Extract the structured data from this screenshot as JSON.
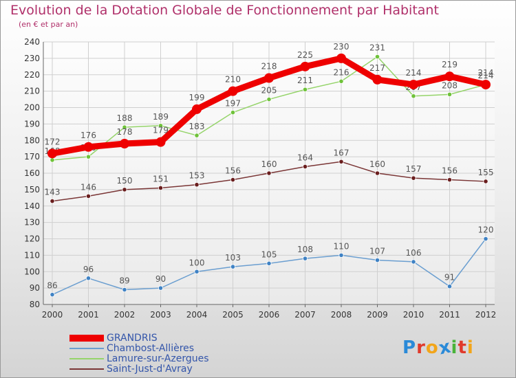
{
  "header": {
    "title": "Evolution de la Dotation Globale de Fonctionnement par Habitant",
    "subtitle": "(en € et par an)"
  },
  "logo": {
    "text": "Proxiti",
    "letters": [
      "P",
      "r",
      "o",
      "x",
      "i",
      "t",
      "i"
    ],
    "letter_colors": [
      "#2a8ad8",
      "#e0392b",
      "#f2a51a",
      "#2a8ad8",
      "#49b33a",
      "#e0392b",
      "#f2a51a"
    ]
  },
  "chart_data": {
    "type": "line",
    "title": "Evolution de la Dotation Globale de Fonctionnement par Habitant",
    "subtitle": "(en € et par an)",
    "x": [
      2000,
      2001,
      2002,
      2003,
      2004,
      2005,
      2006,
      2007,
      2008,
      2009,
      2010,
      2011,
      2012
    ],
    "ylim": [
      80,
      240
    ],
    "yticks": [
      80,
      90,
      100,
      110,
      120,
      130,
      140,
      150,
      160,
      170,
      180,
      190,
      200,
      210,
      220,
      230,
      240
    ],
    "grid": true,
    "legend_position": "bottom-left",
    "series": [
      {
        "name": "GRANDRIS",
        "color": "#ee0000",
        "marker_color": "#ee0000",
        "label_color": "#555555",
        "emphasis": true,
        "values": [
          172,
          176,
          178,
          179,
          199,
          210,
          218,
          225,
          230,
          217,
          214,
          219,
          214
        ]
      },
      {
        "name": "Chambost-Allières",
        "color": "#6a9ed0",
        "marker_color": "#3f82c4",
        "label_color": "#555555",
        "emphasis": false,
        "values": [
          86,
          96,
          89,
          90,
          100,
          103,
          105,
          108,
          110,
          107,
          106,
          91,
          120
        ]
      },
      {
        "name": "Lamure-sur-Azergues",
        "color": "#95d46a",
        "marker_color": "#6fc23a",
        "label_color": "#555555",
        "emphasis": false,
        "values": [
          168,
          170,
          188,
          189,
          183,
          197,
          205,
          211,
          216,
          231,
          207,
          208,
          214
        ]
      },
      {
        "name": "Saint-Just-d'Avray",
        "color": "#7a3535",
        "marker_color": "#6a1e1e",
        "label_color": "#555555",
        "emphasis": false,
        "values": [
          143,
          146,
          150,
          151,
          153,
          156,
          160,
          164,
          167,
          160,
          157,
          156,
          155
        ]
      }
    ]
  }
}
